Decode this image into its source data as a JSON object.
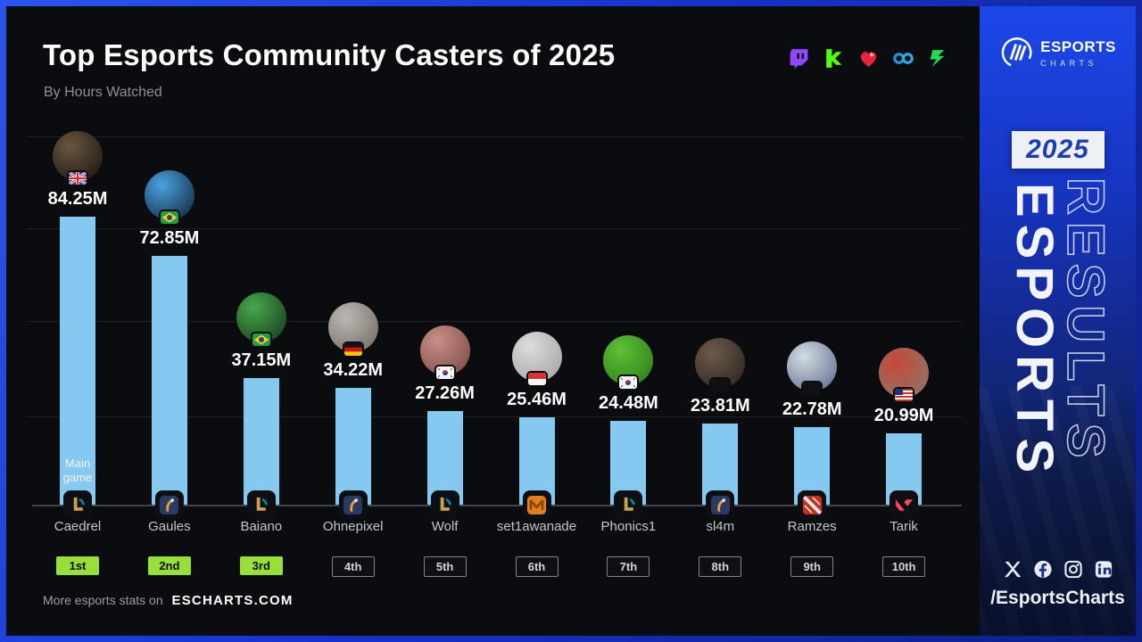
{
  "header": {
    "title": "Top Esports Community Casters of 2025",
    "subtitle": "By Hours Watched"
  },
  "platforms": [
    {
      "key": "twitch",
      "color": "#9146FF"
    },
    {
      "key": "kick",
      "color": "#53FC18"
    },
    {
      "key": "heart-play",
      "color": "#E8253D"
    },
    {
      "key": "soop",
      "color": "#30A6E8"
    },
    {
      "key": "chzzk",
      "color": "#23D954"
    }
  ],
  "chart_data": {
    "type": "bar",
    "title": "Top Esports Community Casters of 2025",
    "subtitle": "By Hours Watched",
    "unit": "hours watched (millions)",
    "bar_color": "#85c9f1",
    "grid": true,
    "ylim": [
      0,
      90
    ],
    "scale_max": 84.25,
    "annotation": "Main game",
    "categories": [
      "Caedrel",
      "Gaules",
      "Baiano",
      "Ohnepixel",
      "Wolf",
      "set1awanade",
      "Phonics1",
      "sl4m",
      "Ramzes",
      "Tarik"
    ],
    "values": [
      84.25,
      72.85,
      37.15,
      34.22,
      27.26,
      25.46,
      24.48,
      23.81,
      22.78,
      20.99
    ],
    "casters": [
      {
        "name": "Caedrel",
        "value": 84.25,
        "value_label": "84.25M",
        "rank": "1st",
        "rank_style": "green",
        "flag": "gb",
        "game": "lol",
        "avatar_colors": [
          "#6b5640",
          "#14110d"
        ]
      },
      {
        "name": "Gaules",
        "value": 72.85,
        "value_label": "72.85M",
        "rank": "2nd",
        "rank_style": "green",
        "flag": "br",
        "game": "cs2",
        "avatar_colors": [
          "#49a3e0",
          "#0e1b30"
        ]
      },
      {
        "name": "Baiano",
        "value": 37.15,
        "value_label": "37.15M",
        "rank": "3rd",
        "rank_style": "green",
        "flag": "br",
        "game": "lol",
        "avatar_colors": [
          "#46a84e",
          "#143318"
        ]
      },
      {
        "name": "Ohnepixel",
        "value": 34.22,
        "value_label": "34.22M",
        "rank": "4th",
        "rank_style": "outline",
        "flag": "de",
        "game": "cs2",
        "avatar_colors": [
          "#bdb8b3",
          "#6e665e"
        ]
      },
      {
        "name": "Wolf",
        "value": 27.26,
        "value_label": "27.26M",
        "rank": "5th",
        "rank_style": "outline",
        "flag": "kr",
        "game": "lol",
        "avatar_colors": [
          "#c98f86",
          "#74453f"
        ]
      },
      {
        "name": "set1awanade",
        "value": 25.46,
        "value_label": "25.46M",
        "rank": "6th",
        "rank_style": "outline",
        "flag": "id",
        "game": "mlbb",
        "avatar_colors": [
          "#dcdcdc",
          "#9f9f9f"
        ]
      },
      {
        "name": "Phonics1",
        "value": 24.48,
        "value_label": "24.48M",
        "rank": "7th",
        "rank_style": "outline",
        "flag": "kr",
        "game": "lol",
        "avatar_colors": [
          "#5cc234",
          "#2c7519"
        ]
      },
      {
        "name": "sl4m",
        "value": 23.81,
        "value_label": "23.81M",
        "rank": "8th",
        "rank_style": "outline",
        "flag": "censored",
        "game": "cs2",
        "avatar_colors": [
          "#6e5a4a",
          "#26201c"
        ]
      },
      {
        "name": "Ramzes",
        "value": 22.78,
        "value_label": "22.78M",
        "rank": "9th",
        "rank_style": "outline",
        "flag": "censored",
        "game": "dota",
        "avatar_colors": [
          "#d4dbe3",
          "#55678c"
        ]
      },
      {
        "name": "Tarik",
        "value": 20.99,
        "value_label": "20.99M",
        "rank": "10th",
        "rank_style": "outline",
        "flag": "us",
        "game": "valorant",
        "avatar_colors": [
          "#c4493a",
          "#8a7a6d"
        ]
      }
    ]
  },
  "footer": {
    "prefix": "More esports stats on",
    "site": "ESCHARTS.COM"
  },
  "brand_panel": {
    "logo_line1": "ESPORTS",
    "logo_line2": "CHARTS",
    "year": "2025",
    "vertical_primary": "ESPORTS",
    "vertical_secondary": "RESULTS",
    "social": [
      "x",
      "facebook",
      "instagram",
      "linkedin"
    ],
    "handle": "/EsportsCharts"
  }
}
